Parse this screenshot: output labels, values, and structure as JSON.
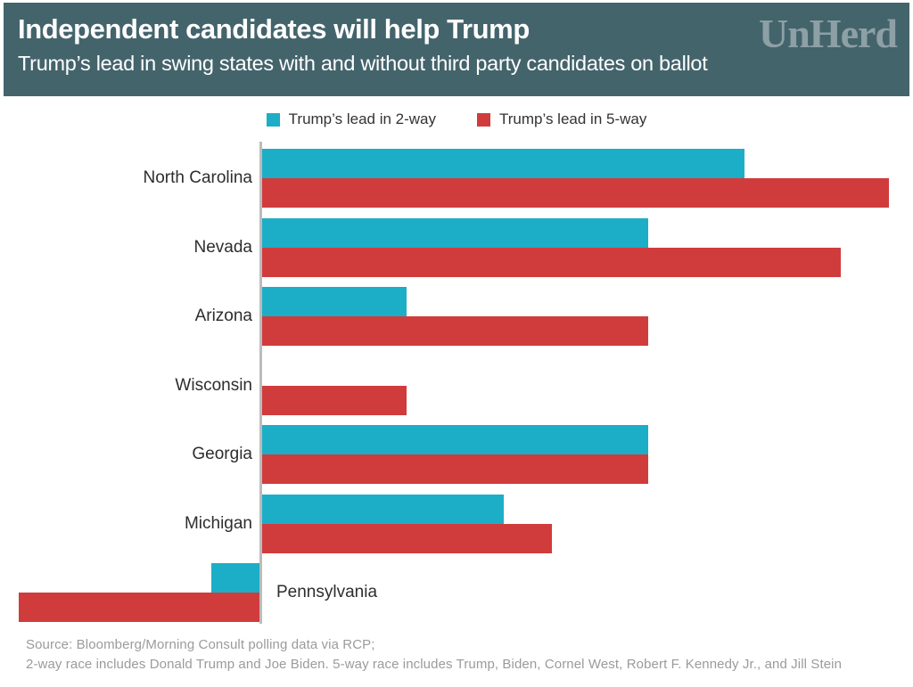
{
  "header": {
    "title": "Independent candidates will help Trump",
    "subtitle": "Trump’s lead in swing states with and without third party candidates on ballot",
    "logo": "UnHerd",
    "bg_color": "#44646c",
    "logo_color": "#8da0a6"
  },
  "legend": [
    {
      "label": "Trump’s lead in 2-way",
      "color": "#1caec6"
    },
    {
      "label": "Trump’s lead in 5-way",
      "color": "#d03c3c"
    }
  ],
  "chart_data": {
    "type": "bar",
    "orientation": "horizontal",
    "title": "Trump’s lead in swing states with and without third party candidates on ballot",
    "categories": [
      "North Carolina",
      "Nevada",
      "Arizona",
      "Wisconsin",
      "Georgia",
      "Michigan",
      "Pennsylvania"
    ],
    "series": [
      {
        "name": "Trump’s lead in 2-way",
        "color": "#1caec6",
        "values": [
          10,
          8,
          3,
          0,
          8,
          5,
          -1
        ]
      },
      {
        "name": "Trump’s lead in 5-way",
        "color": "#d03c3c",
        "values": [
          13,
          12,
          8,
          3,
          8,
          6,
          -5
        ]
      }
    ],
    "xlim": [
      -5,
      13.5
    ],
    "baseline": 0,
    "grid": false,
    "legend_position": "top",
    "axis_color": "#bcbcbc"
  },
  "footer": {
    "line1": "Source: Bloomberg/Morning Consult polling data via RCP;",
    "line2": "2-way race includes Donald Trump and Joe Biden. 5-way race includes Trump, Biden, Cornel West, Robert F. Kennedy Jr., and Jill Stein"
  }
}
